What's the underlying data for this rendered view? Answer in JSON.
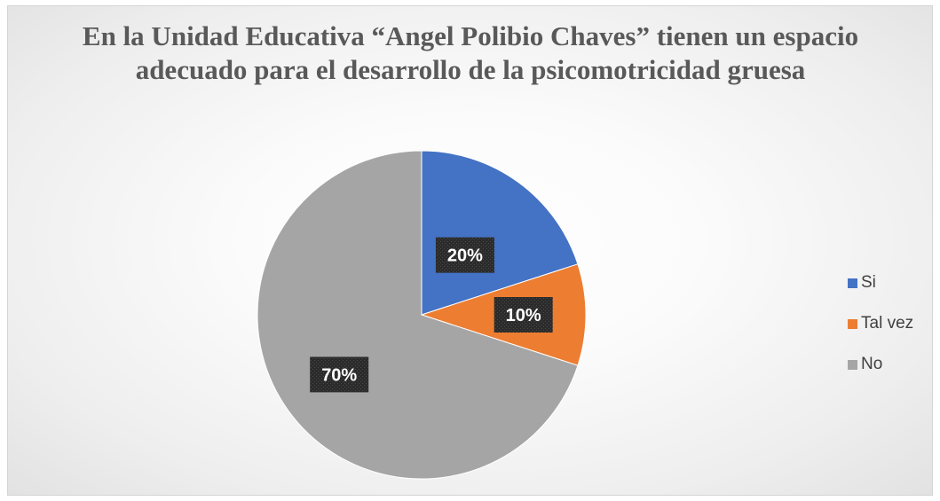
{
  "chart_data": {
    "type": "pie",
    "title": "En la Unidad Educativa “Angel Polibio Chaves” tienen un espacio adecuado para el desarrollo de la psicomotricidad gruesa",
    "categories": [
      "Si",
      "Tal vez",
      "No"
    ],
    "values": [
      20,
      10,
      70
    ],
    "data_labels": [
      "20%",
      "10%",
      "70%"
    ],
    "colors": [
      "#4472C4",
      "#ED7D31",
      "#A5A5A5"
    ],
    "legend_position": "right"
  }
}
